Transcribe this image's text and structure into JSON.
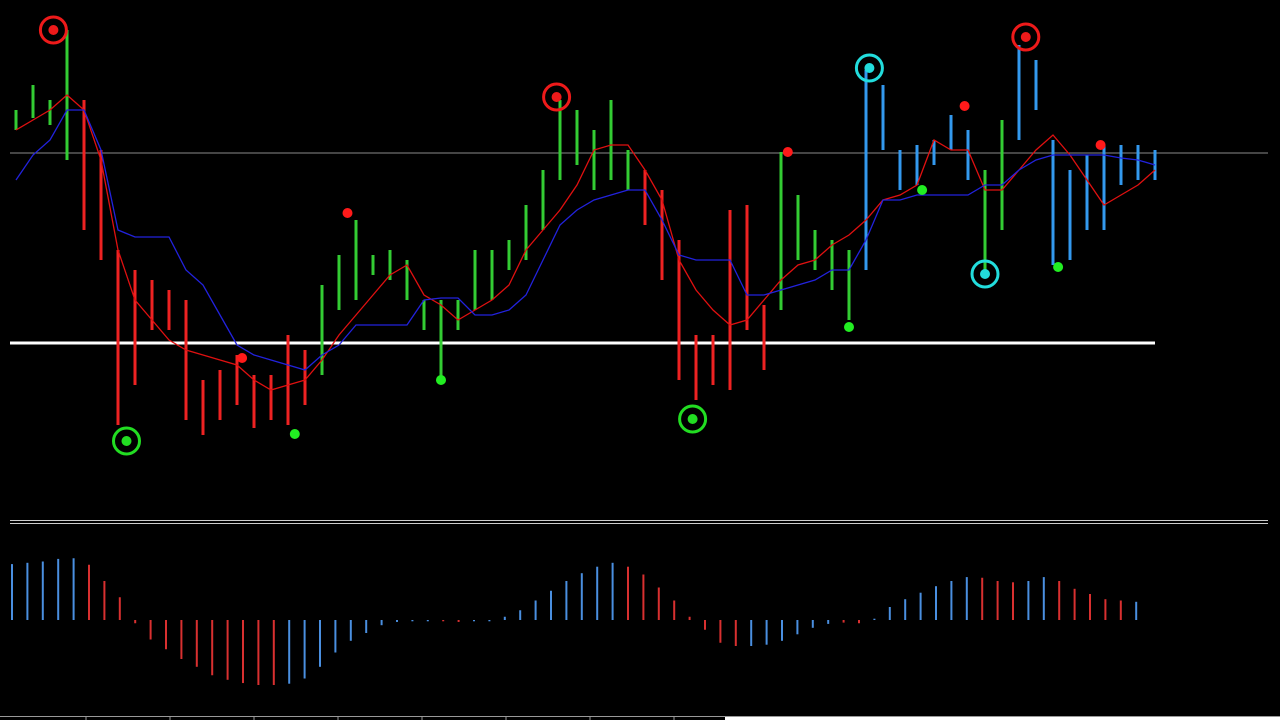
{
  "chart_data": [
    {
      "type": "range_bar",
      "ylim": [
        0,
        100
      ],
      "high": [
        80,
        85,
        82,
        96,
        82,
        72,
        52,
        48,
        46,
        44,
        42,
        26,
        28,
        31,
        27,
        27,
        35,
        32,
        45,
        51,
        58,
        51,
        52,
        50,
        42,
        42,
        42,
        52,
        52,
        54,
        61,
        68,
        82,
        80,
        76,
        82,
        72,
        68,
        64,
        54,
        35,
        35,
        60,
        61,
        41,
        71.6,
        63,
        56,
        54,
        52,
        88,
        85,
        72,
        73,
        74,
        79,
        76,
        68,
        78,
        93,
        90,
        74,
        68,
        71,
        73,
        73,
        73,
        72
      ],
      "low": [
        76,
        78.4,
        77,
        70,
        56,
        50,
        17,
        25,
        36,
        36,
        18,
        15,
        18,
        21,
        16.4,
        18,
        17,
        21,
        27,
        40,
        42,
        47,
        46,
        42,
        36,
        26,
        36,
        40,
        42,
        48,
        50,
        56,
        66,
        69,
        64,
        66,
        64,
        57,
        46,
        26,
        22,
        25,
        24,
        36,
        28,
        40,
        50,
        48,
        44,
        38,
        48,
        72,
        64,
        65,
        69,
        72,
        66,
        47,
        56,
        74,
        80,
        49,
        50,
        56,
        56,
        65,
        66,
        66
      ],
      "bar_colors": [
        "#3c3",
        "#3c3",
        "#3c3",
        "#3c3",
        "#e22",
        "#e22",
        "#e22",
        "#e22",
        "#e22",
        "#e22",
        "#e22",
        "#e22",
        "#e22",
        "#e22",
        "#e22",
        "#e22",
        "#e22",
        "#e22",
        "#3c3",
        "#3c3",
        "#3c3",
        "#3c3",
        "#3c3",
        "#3c3",
        "#3c3",
        "#3c3",
        "#3c3",
        "#3c3",
        "#3c3",
        "#3c3",
        "#3c3",
        "#3c3",
        "#3c3",
        "#3c3",
        "#3c3",
        "#3c3",
        "#3c3",
        "#e22",
        "#e22",
        "#e22",
        "#e22",
        "#e22",
        "#e22",
        "#e22",
        "#e22",
        "#3c3",
        "#3c3",
        "#3c3",
        "#3c3",
        "#3c3",
        "#39e",
        "#39e",
        "#39e",
        "#39e",
        "#39e",
        "#39e",
        "#39e",
        "#3c3",
        "#3c3",
        "#39e",
        "#39e",
        "#39e",
        "#39e",
        "#39e",
        "#39e",
        "#39e",
        "#39e",
        "#39e"
      ],
      "lines": [
        {
          "color": "#e01010",
          "values": [
            76,
            78,
            80,
            83,
            80,
            70,
            52,
            42,
            38,
            34,
            32,
            31,
            30,
            29,
            26,
            24,
            25,
            26,
            30,
            35,
            39,
            43,
            47,
            49,
            43,
            41,
            38,
            40,
            42,
            45,
            52,
            56,
            60,
            65,
            72,
            73,
            73,
            68,
            62,
            50,
            44,
            40,
            37,
            38,
            42,
            46,
            49,
            50,
            53,
            55,
            58,
            62,
            63,
            65,
            74,
            72,
            72,
            64,
            64,
            68,
            72,
            75,
            71,
            66,
            61,
            63,
            65,
            68
          ]
        },
        {
          "color": "#2222dd",
          "values": [
            66,
            71,
            74,
            80,
            80,
            72,
            56,
            54.6,
            54.6,
            54.6,
            48,
            45,
            39,
            33,
            31,
            30,
            29,
            28,
            31,
            33,
            37,
            37,
            37,
            37,
            42,
            42.4,
            42.4,
            39,
            39,
            40,
            43,
            50,
            57,
            60,
            62,
            63,
            64,
            64,
            58,
            51,
            50,
            50,
            50,
            43,
            43,
            44,
            45,
            46,
            48,
            48,
            54,
            62,
            62,
            63,
            63,
            63,
            63,
            65,
            65,
            68,
            70,
            71,
            71,
            71,
            71,
            70.4,
            70,
            69
          ]
        }
      ],
      "hlines": [
        {
          "value": 71.4,
          "color": "#8a8a8a"
        },
        {
          "value": 33.4,
          "color": "#ffffff"
        }
      ],
      "markers": [
        {
          "shape": "dot",
          "color": "#ff1a1a",
          "x": [
            19.5,
            13.3,
            45.4,
            55.8,
            63.8
          ],
          "y": [
            59.4,
            30.4,
            71.6,
            80.8,
            73
          ]
        },
        {
          "shape": "dot",
          "color": "#22ee22",
          "x": [
            16.4,
            25,
            49,
            53.3,
            61.3
          ],
          "y": [
            15.2,
            26,
            36.6,
            64,
            48.6
          ]
        },
        {
          "shape": "ring",
          "color": "#22dd22",
          "x": [
            6.5,
            39.8
          ],
          "y": [
            13.8,
            18.2
          ]
        },
        {
          "shape": "ring",
          "color": "#ee1a1a",
          "x": [
            2.2,
            31.8,
            59.4
          ],
          "y": [
            96,
            82.6,
            94.6
          ]
        },
        {
          "shape": "ring",
          "color": "#22dddd",
          "x": [
            50.2,
            57
          ],
          "y": [
            88.4,
            47.2
          ]
        }
      ]
    },
    {
      "type": "bar",
      "ylim": [
        -1,
        1
      ],
      "values": [
        0.86,
        0.88,
        0.9,
        0.94,
        0.95,
        0.85,
        0.6,
        0.35,
        -0.05,
        -0.3,
        -0.45,
        -0.6,
        -0.72,
        -0.85,
        -0.92,
        -0.97,
        -1,
        -1,
        -0.98,
        -0.9,
        -0.72,
        -0.5,
        -0.32,
        -0.2,
        -0.08,
        -0.03,
        -0.02,
        -0.02,
        -0.02,
        -0.03,
        -0.02,
        -0.02,
        0.05,
        0.15,
        0.3,
        0.45,
        0.6,
        0.72,
        0.82,
        0.88,
        0.82,
        0.7,
        0.5,
        0.3,
        0.05,
        -0.15,
        -0.35,
        -0.4,
        -0.4,
        -0.38,
        -0.32,
        -0.22,
        -0.12,
        -0.06,
        -0.04,
        -0.05,
        0.02,
        0.2,
        0.32,
        0.42,
        0.52,
        0.6,
        0.66,
        0.65,
        0.6,
        0.58,
        0.6,
        0.66,
        0.6,
        0.48,
        0.4,
        0.32,
        0.3,
        0.28
      ],
      "bar_colors": [
        "#4a8fe0",
        "#4a8fe0",
        "#4a8fe0",
        "#4a8fe0",
        "#4a8fe0",
        "#d93030",
        "#d93030",
        "#d93030",
        "#d93030",
        "#d93030",
        "#d93030",
        "#d93030",
        "#d93030",
        "#d93030",
        "#d93030",
        "#d93030",
        "#d93030",
        "#d93030",
        "#4a8fe0",
        "#4a8fe0",
        "#4a8fe0",
        "#4a8fe0",
        "#4a8fe0",
        "#4a8fe0",
        "#4a8fe0",
        "#4a8fe0",
        "#4a8fe0",
        "#4a8fe0",
        "#d93030",
        "#d93030",
        "#4a8fe0",
        "#4a8fe0",
        "#4a8fe0",
        "#4a8fe0",
        "#4a8fe0",
        "#4a8fe0",
        "#4a8fe0",
        "#4a8fe0",
        "#4a8fe0",
        "#4a8fe0",
        "#d93030",
        "#d93030",
        "#d93030",
        "#d93030",
        "#d93030",
        "#d93030",
        "#d93030",
        "#d93030",
        "#4a8fe0",
        "#4a8fe0",
        "#4a8fe0",
        "#4a8fe0",
        "#4a8fe0",
        "#4a8fe0",
        "#d93030",
        "#d93030",
        "#4a8fe0",
        "#4a8fe0",
        "#4a8fe0",
        "#4a8fe0",
        "#4a8fe0",
        "#4a8fe0",
        "#4a8fe0",
        "#d93030",
        "#d93030",
        "#d93030",
        "#4a8fe0",
        "#4a8fe0",
        "#d93030",
        "#d93030",
        "#d93030",
        "#d93030",
        "#d93030",
        "#4a8fe0"
      ]
    }
  ]
}
